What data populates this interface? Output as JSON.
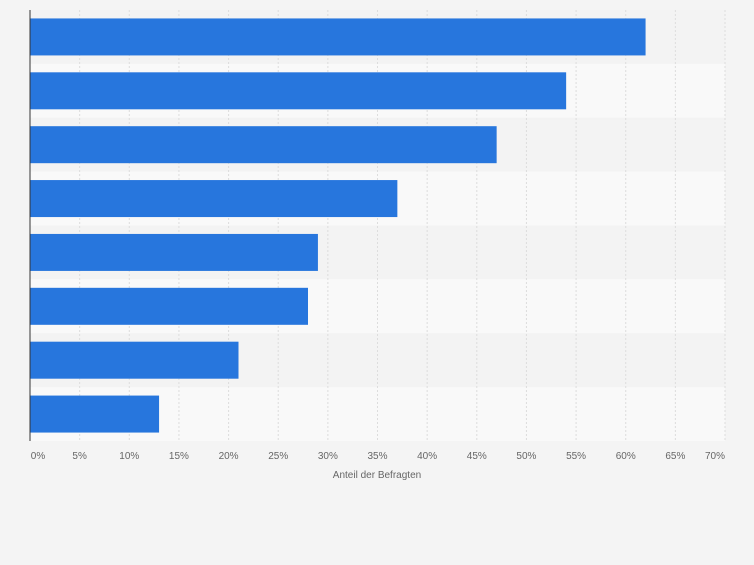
{
  "chart_data": {
    "type": "bar",
    "orientation": "horizontal",
    "title": "",
    "xlabel": "Anteil der Befragten",
    "ylabel": "",
    "categories": [
      "",
      "",
      "",
      "",
      "",
      "",
      "",
      ""
    ],
    "values": [
      62,
      54,
      47,
      37,
      29,
      28,
      21,
      13
    ],
    "xlim": [
      0,
      70
    ],
    "ticks": [
      0,
      5,
      10,
      15,
      20,
      25,
      30,
      35,
      40,
      45,
      50,
      55,
      60,
      65,
      70
    ],
    "tick_labels": [
      "0%",
      "5%",
      "10%",
      "15%",
      "20%",
      "25%",
      "30%",
      "35%",
      "40%",
      "45%",
      "50%",
      "55%",
      "60%",
      "65%",
      "70%"
    ],
    "grid": true,
    "legend": "none"
  },
  "colors": {
    "bar": "#2776dd",
    "page_background": "#f4f4f4",
    "band_dark": "#f3f3f3",
    "band_light": "#f9f9f9",
    "grid": "#dddddd",
    "axis": "#333333",
    "tick_text": "#666666"
  }
}
